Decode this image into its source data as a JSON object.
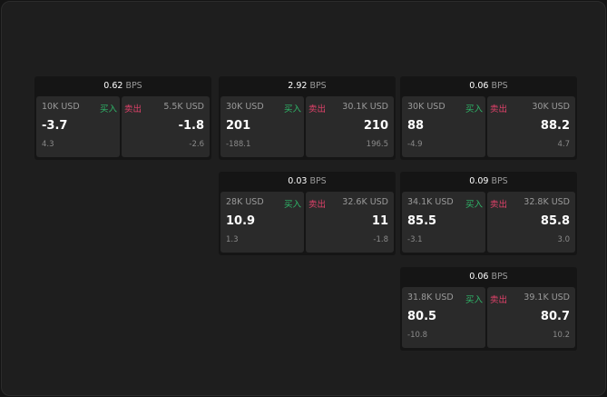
{
  "buy_label": "买入",
  "sell_label": "卖出",
  "unit": "BPS",
  "colors": {
    "buy": "#2fb86a",
    "sell": "#e0426a"
  },
  "quotes": [
    {
      "spread": "0.62",
      "bid_size": "10K USD",
      "bid": "-3.7",
      "bid_change": "4.3",
      "ask_size": "5.5K USD",
      "ask": "-1.8",
      "ask_change": "-2.6"
    },
    {
      "spread": "2.92",
      "bid_size": "30K USD",
      "bid": "201",
      "bid_change": "-188.1",
      "ask_size": "30.1K USD",
      "ask": "210",
      "ask_change": "196.5"
    },
    {
      "spread": "0.06",
      "bid_size": "30K USD",
      "bid": "88",
      "bid_change": "-4.9",
      "ask_size": "30K USD",
      "ask": "88.2",
      "ask_change": "4.7"
    },
    {
      "spread": "0.03",
      "bid_size": "28K USD",
      "bid": "10.9",
      "bid_change": "1.3",
      "ask_size": "32.6K USD",
      "ask": "11",
      "ask_change": "-1.8"
    },
    {
      "spread": "0.09",
      "bid_size": "34.1K USD",
      "bid": "85.5",
      "bid_change": "-3.1",
      "ask_size": "32.8K USD",
      "ask": "85.8",
      "ask_change": "3.0"
    },
    {
      "spread": "0.06",
      "bid_size": "31.8K USD",
      "bid": "80.5",
      "bid_change": "-10.8",
      "ask_size": "39.1K USD",
      "ask": "80.7",
      "ask_change": "10.2"
    }
  ]
}
